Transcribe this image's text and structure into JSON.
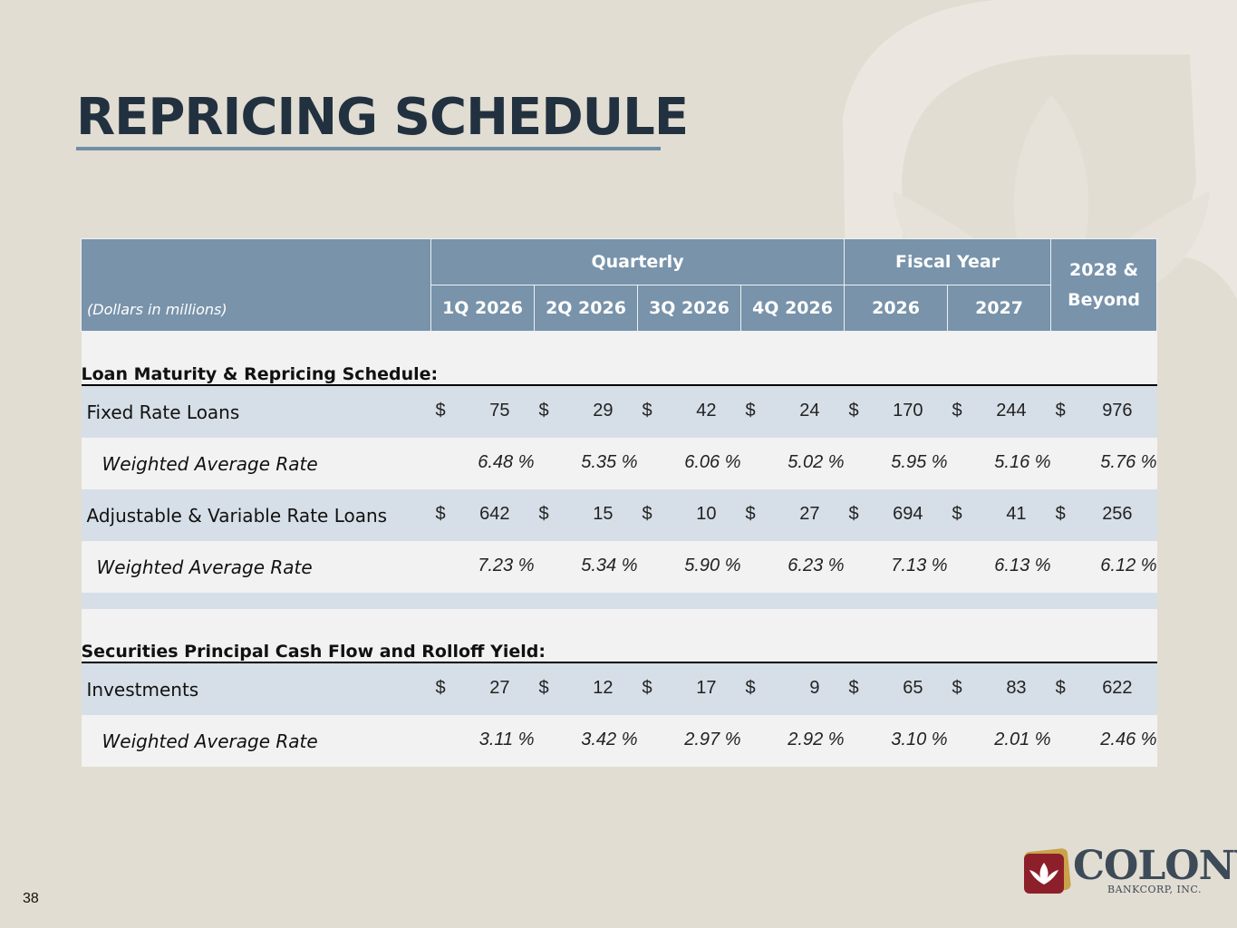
{
  "slide": {
    "title": "REPRICING SCHEDULE",
    "page_number": "38"
  },
  "header": {
    "units": "(Dollars in millions)",
    "group_quarterly": "Quarterly",
    "group_fiscal": "Fiscal Year",
    "beyond_line1": "2028 &",
    "beyond_line2": "Beyond",
    "columns": [
      "1Q 2026",
      "2Q 2026",
      "3Q 2026",
      "4Q 2026",
      "2026",
      "2027"
    ]
  },
  "sections": [
    {
      "title": "Loan Maturity & Repricing Schedule:",
      "rows": [
        {
          "label": "Fixed Rate Loans",
          "values": [
            "75",
            "29",
            "42",
            "24",
            "170",
            "244",
            "976"
          ]
        },
        {
          "label": "Weighted Average Rate",
          "rates": [
            "6.48 %",
            "5.35 %",
            "6.06 %",
            "5.02 %",
            "5.95 %",
            "5.16 %",
            "5.76 %"
          ]
        },
        {
          "label": "Adjustable & Variable Rate Loans",
          "values": [
            "642",
            "15",
            "10",
            "27",
            "694",
            "41",
            "256"
          ]
        },
        {
          "label": "Weighted Average Rate",
          "rates": [
            "7.23 %",
            "5.34 %",
            "5.90 %",
            "6.23 %",
            "7.13 %",
            "6.13 %",
            "6.12 %"
          ]
        }
      ]
    },
    {
      "title": "Securities Principal Cash Flow and Rolloff Yield:",
      "rows": [
        {
          "label": "Investments",
          "values": [
            "27",
            "12",
            "17",
            "9",
            "65",
            "83",
            "622"
          ]
        },
        {
          "label": "Weighted Average Rate",
          "rates": [
            "3.11 %",
            "3.42 %",
            "2.97 %",
            "2.92 %",
            "3.10 %",
            "2.01 %",
            "2.46 %"
          ]
        }
      ]
    }
  ],
  "currency_symbol": "$",
  "logo": {
    "name": "COLONY",
    "subtitle": "BANKCORP, INC."
  },
  "colors": {
    "background": "#e2ddd2",
    "header_fill": "#7893aa",
    "band_blue": "#d6dfe7",
    "band_white": "#f2f2f2",
    "title": "#22313f",
    "accent_rule": "#6f8ea7"
  }
}
